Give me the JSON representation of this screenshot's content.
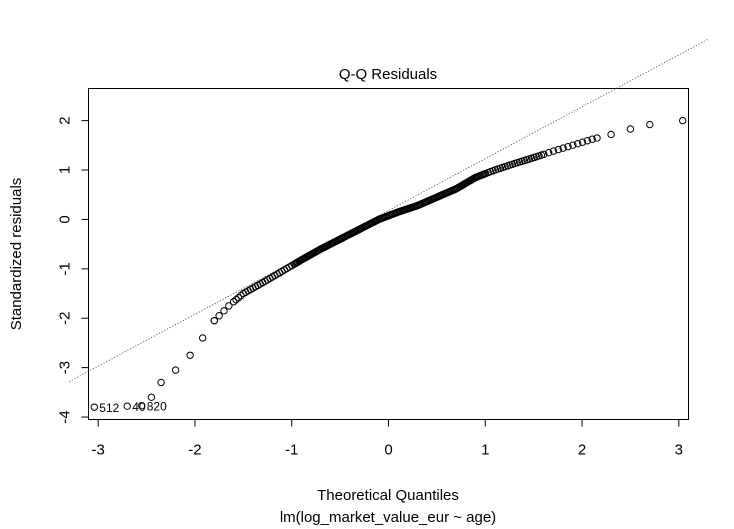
{
  "chart_data": {
    "type": "scatter",
    "title": "Q-Q Residuals",
    "xlabel": "Theoretical Quantiles",
    "subtitle": "lm(log_market_value_eur ~ age)",
    "ylabel": "Standardized residuals",
    "xlim": [
      -3.1,
      3.1
    ],
    "ylim": [
      -4.05,
      2.65
    ],
    "x_ticks": [
      -3,
      -2,
      -1,
      0,
      1,
      2,
      3
    ],
    "y_ticks": [
      -4,
      -3,
      -2,
      -1,
      0,
      1,
      2
    ],
    "x_tick_labels": [
      "-3",
      "-2",
      "-1",
      "0",
      "1",
      "2",
      "3"
    ],
    "y_tick_labels": [
      "-4",
      "-3",
      "-2",
      "-1",
      "0",
      "1",
      "2"
    ],
    "reference_line": {
      "slope": 1.05,
      "intercept": 0.18
    },
    "knots": [
      [
        -3.04,
        -3.8
      ],
      [
        -2.7,
        -3.78
      ],
      [
        -2.55,
        -3.77
      ],
      [
        -2.45,
        -3.6
      ],
      [
        -2.35,
        -3.3
      ],
      [
        -2.2,
        -3.05
      ],
      [
        -2.05,
        -2.75
      ],
      [
        -1.92,
        -2.4
      ],
      [
        -1.8,
        -2.05
      ],
      [
        -1.65,
        -1.75
      ],
      [
        -1.5,
        -1.5
      ],
      [
        -1.3,
        -1.28
      ],
      [
        -1.1,
        -1.05
      ],
      [
        -0.9,
        -0.82
      ],
      [
        -0.7,
        -0.6
      ],
      [
        -0.5,
        -0.4
      ],
      [
        -0.3,
        -0.2
      ],
      [
        -0.1,
        0.0
      ],
      [
        0.1,
        0.15
      ],
      [
        0.3,
        0.28
      ],
      [
        0.5,
        0.45
      ],
      [
        0.7,
        0.62
      ],
      [
        0.9,
        0.85
      ],
      [
        1.1,
        1.0
      ],
      [
        1.3,
        1.13
      ],
      [
        1.5,
        1.25
      ],
      [
        1.7,
        1.38
      ],
      [
        1.9,
        1.5
      ],
      [
        2.1,
        1.62
      ],
      [
        2.3,
        1.72
      ],
      [
        2.5,
        1.83
      ],
      [
        2.7,
        1.92
      ],
      [
        3.04,
        2.0
      ]
    ],
    "point_labels": [
      {
        "text": "512",
        "x": -3.04,
        "y": -3.8
      },
      {
        "text": "40",
        "x": -2.7,
        "y": -3.78
      },
      {
        "text": "820",
        "x": -2.55,
        "y": -3.77
      }
    ]
  }
}
